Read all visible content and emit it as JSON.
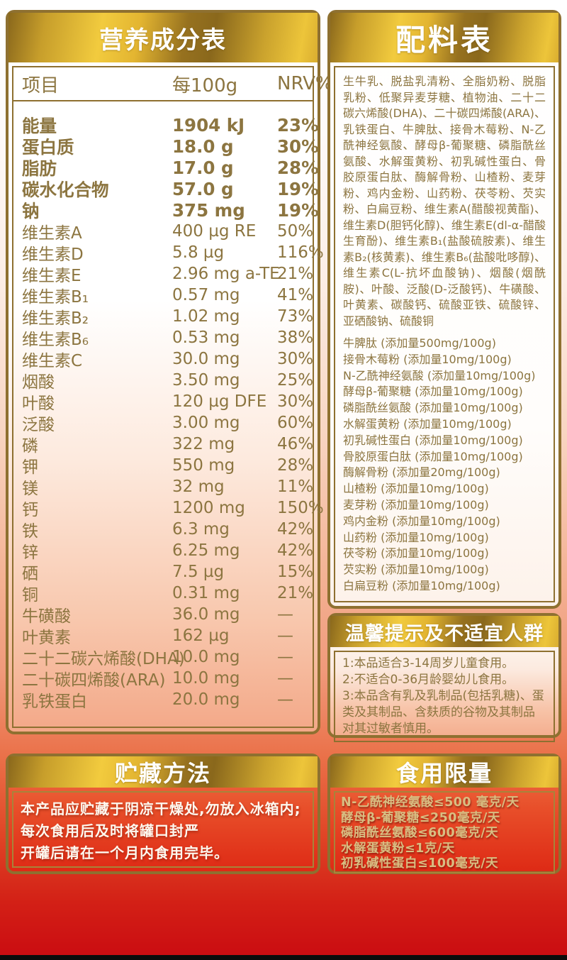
{
  "colors": {
    "gold_border": "#8E7030",
    "gold_light": "#F2CB3E",
    "gold_dark": "#8A681C",
    "text_olive": "#8C7540",
    "header_text": "#FFFFFF",
    "body_salmon": "#F3A888",
    "red_deep": "#CA0B11",
    "storage_red_top": "#EE744A",
    "storage_red_bottom": "#DE2A15",
    "limits_text": "#D8BE82"
  },
  "nutrition": {
    "title": "营养成分表",
    "columns": [
      "项目",
      "每100g",
      "NRV%"
    ],
    "rows": [
      {
        "name": "能量",
        "amount": "1904 kJ",
        "nrv": "23%",
        "bold": true
      },
      {
        "name": "蛋白质",
        "amount": "18.0 g",
        "nrv": "30%",
        "bold": true
      },
      {
        "name": "脂肪",
        "amount": "17.0 g",
        "nrv": "28%",
        "bold": true
      },
      {
        "name": "碳水化合物",
        "amount": "57.0 g",
        "nrv": "19%",
        "bold": true
      },
      {
        "name": "钠",
        "amount": "375 mg",
        "nrv": "19%",
        "bold": true
      },
      {
        "name": "维生素A",
        "amount": "400 µg RE",
        "nrv": "50%",
        "bold": false
      },
      {
        "name": "维生素D",
        "amount": "5.8 µg",
        "nrv": "116%",
        "bold": false
      },
      {
        "name": "维生素E",
        "amount": "2.96 mg a-TE",
        "nrv": "21%",
        "bold": false
      },
      {
        "name": "维生素B₁",
        "amount": "0.57 mg",
        "nrv": "41%",
        "bold": false
      },
      {
        "name": "维生素B₂",
        "amount": "1.02 mg",
        "nrv": "73%",
        "bold": false
      },
      {
        "name": "维生素B₆",
        "amount": "0.53 mg",
        "nrv": "38%",
        "bold": false
      },
      {
        "name": "维生素C",
        "amount": "30.0 mg",
        "nrv": "30%",
        "bold": false
      },
      {
        "name": "烟酸",
        "amount": "3.50 mg",
        "nrv": "25%",
        "bold": false
      },
      {
        "name": "叶酸",
        "amount": "120 µg DFE",
        "nrv": "30%",
        "bold": false
      },
      {
        "name": "泛酸",
        "amount": "3.00 mg",
        "nrv": "60%",
        "bold": false
      },
      {
        "name": "磷",
        "amount": "322 mg",
        "nrv": "46%",
        "bold": false
      },
      {
        "name": "钾",
        "amount": "550 mg",
        "nrv": "28%",
        "bold": false
      },
      {
        "name": "镁",
        "amount": "32 mg",
        "nrv": "11%",
        "bold": false
      },
      {
        "name": "钙",
        "amount": "1200 mg",
        "nrv": "150%",
        "bold": false
      },
      {
        "name": "铁",
        "amount": "6.3 mg",
        "nrv": "42%",
        "bold": false
      },
      {
        "name": "锌",
        "amount": "6.25 mg",
        "nrv": "42%",
        "bold": false
      },
      {
        "name": "硒",
        "amount": "7.5 µg",
        "nrv": "15%",
        "bold": false
      },
      {
        "name": "铜",
        "amount": "0.31 mg",
        "nrv": "21%",
        "bold": false
      },
      {
        "name": "牛磺酸",
        "amount": "36.0 mg",
        "nrv": "—",
        "bold": false
      },
      {
        "name": "叶黄素",
        "amount": "162 µg",
        "nrv": "—",
        "bold": false
      },
      {
        "name": "二十二碳六烯酸(DHA)",
        "amount": "10.0 mg",
        "nrv": "—",
        "bold": false
      },
      {
        "name": "二十碳四烯酸(ARA)",
        "amount": "10.0 mg",
        "nrv": "—",
        "bold": false
      },
      {
        "name": "乳铁蛋白",
        "amount": "20.0 mg",
        "nrv": "—",
        "bold": false
      }
    ]
  },
  "ingredients": {
    "title": "配料表",
    "list_text": "生牛乳、脱盐乳清粉、全脂奶粉、脱脂乳粉、低聚异麦芽糖、植物油、二十二碳六烯酸(DHA)、二十碳四烯酸(ARA)、乳铁蛋白、牛脾肽、接骨木莓粉、N-乙酰神经氨酸、酵母β-葡聚糖、磷脂酰丝氨酸、水解蛋黄粉、初乳碱性蛋白、骨胶原蛋白肽、酶解骨粉、山楂粉、麦芽粉、鸡内金粉、山药粉、茯苓粉、芡实粉、白扁豆粉、维生素A(醋酸视黄酯)、维生素D(胆钙化醇)、维生素E(dl-α-醋酸生育酚)、维生素B₁(盐酸硫胺素)、维生素B₂(核黄素)、维生素B₆(盐酸吡哆醇)、维生素C(L-抗坏血酸钠)、烟酸(烟酰胺)、叶酸、泛酸(D-泛酸钙)、牛磺酸、叶黄素、碳酸钙、硫酸亚铁、硫酸锌、亚硒酸钠、硫酸铜",
    "additives": [
      "牛脾肽 (添加量500mg/100g)",
      "接骨木莓粉 (添加量10mg/100g)",
      "N-乙酰神经氨酸 (添加量10mg/100g)",
      "酵母β-葡聚糖 (添加量10mg/100g)",
      "磷脂酰丝氨酸 (添加量10mg/100g)",
      "水解蛋黄粉 (添加量10mg/100g)",
      "初乳碱性蛋白 (添加量10mg/100g)",
      "骨胶原蛋白肽 (添加量10mg/100g)",
      "酶解骨粉 (添加量20mg/100g)",
      "山楂粉 (添加量10mg/100g)",
      "麦芽粉 (添加量10mg/100g)",
      "鸡内金粉 (添加量10mg/100g)",
      "山药粉 (添加量10mg/100g)",
      "茯苓粉 (添加量10mg/100g)",
      "芡实粉 (添加量10mg/100g)",
      "白扁豆粉 (添加量10mg/100g)"
    ]
  },
  "tips": {
    "title": "温馨提示及不适宜人群",
    "lines": [
      "1:本品适合3-14周岁儿童食用。",
      "2:不适合0-36月龄婴幼儿食用。",
      "3:本品含有乳及乳制品(包括乳糖)、蛋类及其制品、含麸质的谷物及其制品对其过敏者慎用。"
    ]
  },
  "storage": {
    "title": "贮藏方法",
    "lines": [
      "本产品应贮藏于阴凉干燥处,勿放入冰箱内;",
      "每次食用后及时将罐口封严",
      "开罐后请在一个月内食用完毕。"
    ]
  },
  "limits": {
    "title": "食用限量",
    "lines": [
      "N-乙酰神经氨酸≤500 毫克/天",
      "酵母β-葡聚糖≤250毫克/天",
      "磷脂酰丝氨酸≤600毫克/天",
      "水解蛋黄粉≤1克/天",
      "初乳碱性蛋白≤100毫克/天"
    ]
  }
}
